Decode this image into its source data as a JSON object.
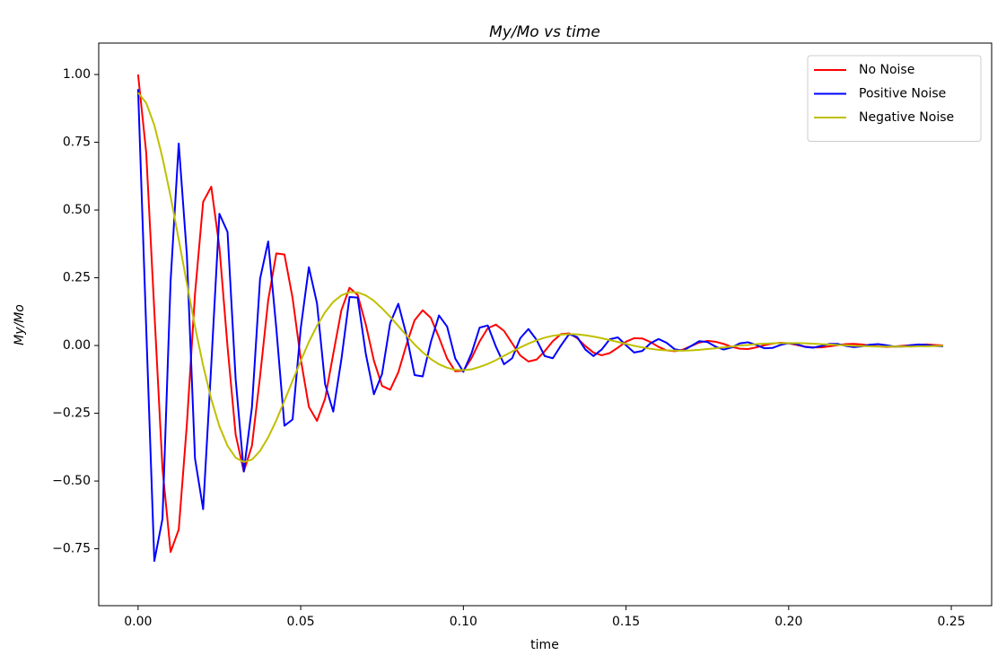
{
  "chart_data": {
    "type": "line",
    "title": "My/Mo vs time",
    "x_label": "time",
    "y_label": "My/Mo",
    "xlim": [
      -0.0121,
      0.2624
    ],
    "ylim": [
      -0.96,
      1.116
    ],
    "xticks": [
      {
        "value": 0,
        "label": "0.00"
      },
      0.05,
      {
        "value": 0.1,
        "label": "0.10"
      },
      0.15,
      {
        "value": 0.2,
        "label": "0.20"
      },
      0.25
    ],
    "yticks": [
      {
        "value": -0.75,
        "label": "−0.75"
      },
      {
        "value": -0.5,
        "label": "−0.50"
      },
      {
        "value": -0.25,
        "label": "−0.25"
      },
      {
        "value": 0,
        "label": "0.00"
      },
      0.25,
      {
        "value": 0.5,
        "label": "0.50"
      },
      0.75,
      {
        "value": 1,
        "label": "1.00"
      }
    ],
    "grid": false,
    "legend": "upper right",
    "x": [
      0,
      0.0025,
      0.005,
      0.0075,
      0.01,
      0.0125,
      0.015,
      0.0175,
      0.02,
      0.0225,
      0.025,
      0.0275,
      0.03,
      0.0325,
      0.035,
      0.0375,
      0.04,
      0.0425,
      0.045,
      0.0475,
      0.05,
      0.0525,
      0.055,
      0.0575,
      0.06,
      0.0625,
      0.065,
      0.0675,
      0.07,
      0.0725,
      0.075,
      0.0775,
      0.08,
      0.0825,
      0.085,
      0.0875,
      0.09,
      0.0925,
      0.095,
      0.0975,
      0.1,
      0.1025,
      0.105,
      0.1075,
      0.11,
      0.1125,
      0.115,
      0.1175,
      0.12,
      0.1225,
      0.125,
      0.1275,
      0.13,
      0.1325,
      0.135,
      0.1375,
      0.14,
      0.1425,
      0.145,
      0.1475,
      0.15,
      0.1525,
      0.155,
      0.1575,
      0.16,
      0.1625,
      0.165,
      0.1675,
      0.17,
      0.1725,
      0.175,
      0.1775,
      0.18,
      0.1825,
      0.185,
      0.1875,
      0.19,
      0.1925,
      0.195,
      0.1975,
      0.2,
      0.2025,
      0.205,
      0.2075,
      0.21,
      0.2125,
      0.215,
      0.2175,
      0.22,
      0.2225,
      0.225,
      0.2275,
      0.23,
      0.2325,
      0.235,
      0.2375,
      0.24,
      0.2425,
      0.245,
      0.2475
    ],
    "series": [
      {
        "name": "No Noise",
        "color": "#ff0000",
        "values": [
          1.0,
          0.712,
          0.126,
          -0.454,
          -0.762,
          -0.679,
          -0.291,
          0.19,
          0.53,
          0.586,
          0.363,
          -0.004,
          -0.329,
          -0.465,
          -0.37,
          -0.114,
          0.167,
          0.34,
          0.336,
          0.175,
          -0.049,
          -0.226,
          -0.278,
          -0.196,
          -0.031,
          0.13,
          0.213,
          0.187,
          0.078,
          -0.056,
          -0.149,
          -0.163,
          -0.099,
          0.003,
          0.093,
          0.13,
          0.102,
          0.03,
          -0.048,
          -0.095,
          -0.093,
          -0.047,
          0.015,
          0.064,
          0.077,
          0.054,
          0.008,
          -0.037,
          -0.059,
          -0.052,
          -0.021,
          0.016,
          0.042,
          0.045,
          0.027,
          -0.002,
          -0.026,
          -0.036,
          -0.028,
          -0.008,
          0.014,
          0.027,
          0.026,
          0.013,
          -0.005,
          -0.018,
          -0.021,
          -0.015,
          -0.002,
          0.011,
          0.017,
          0.014,
          0.006,
          -0.005,
          -0.012,
          -0.013,
          -0.007,
          0.001,
          0.007,
          0.01,
          0.008,
          0.002,
          -0.004,
          -0.007,
          -0.007,
          -0.003,
          0.001,
          0.005,
          0.006,
          0.004,
          0.0,
          -0.003,
          -0.005,
          -0.004,
          -0.001,
          0.001,
          0.003,
          0.004,
          0.002,
          0.0
        ]
      },
      {
        "name": "Positive Noise",
        "color": "#0000ff",
        "values": [
          0.946,
          0.065,
          -0.795,
          -0.64,
          0.238,
          0.745,
          0.334,
          -0.417,
          -0.604,
          -0.071,
          0.486,
          0.419,
          -0.125,
          -0.465,
          -0.228,
          0.246,
          0.384,
          0.063,
          -0.296,
          -0.273,
          0.063,
          0.289,
          0.156,
          -0.143,
          -0.244,
          -0.051,
          0.179,
          0.177,
          -0.03,
          -0.18,
          -0.105,
          0.083,
          0.154,
          0.039,
          -0.109,
          -0.114,
          0.013,
          0.111,
          0.07,
          -0.048,
          -0.097,
          -0.029,
          0.066,
          0.074,
          -0.004,
          -0.069,
          -0.047,
          0.027,
          0.061,
          0.021,
          -0.039,
          -0.047,
          0.0,
          0.042,
          0.031,
          -0.015,
          -0.039,
          -0.015,
          0.023,
          0.03,
          0.001,
          -0.026,
          -0.02,
          0.008,
          0.024,
          0.01,
          -0.014,
          -0.019,
          -0.002,
          0.016,
          0.013,
          -0.004,
          -0.015,
          -0.007,
          0.008,
          0.012,
          0.002,
          -0.01,
          -0.009,
          0.002,
          0.009,
          0.005,
          -0.005,
          -0.008,
          -0.002,
          0.006,
          0.006,
          -0.001,
          -0.006,
          -0.003,
          0.003,
          0.005,
          0.001,
          -0.004,
          -0.004,
          0.001,
          0.004,
          0.002,
          -0.002,
          -0.003
        ]
      },
      {
        "name": "Negative Noise",
        "color": "#bfbf00",
        "values": [
          0.933,
          0.895,
          0.813,
          0.693,
          0.55,
          0.391,
          0.229,
          0.07,
          -0.074,
          -0.198,
          -0.298,
          -0.37,
          -0.414,
          -0.43,
          -0.421,
          -0.389,
          -0.339,
          -0.276,
          -0.204,
          -0.13,
          -0.057,
          0.013,
          0.073,
          0.123,
          0.161,
          0.185,
          0.197,
          0.196,
          0.185,
          0.165,
          0.137,
          0.106,
          0.072,
          0.037,
          0.004,
          -0.025,
          -0.05,
          -0.069,
          -0.082,
          -0.09,
          -0.091,
          -0.088,
          -0.079,
          -0.068,
          -0.054,
          -0.038,
          -0.022,
          -0.007,
          0.007,
          0.019,
          0.029,
          0.036,
          0.04,
          0.042,
          0.041,
          0.038,
          0.033,
          0.027,
          0.02,
          0.013,
          0.006,
          -0.001,
          -0.007,
          -0.012,
          -0.016,
          -0.018,
          -0.019,
          -0.019,
          -0.018,
          -0.016,
          -0.013,
          -0.01,
          -0.007,
          -0.004,
          0.0,
          0.002,
          0.005,
          0.007,
          0.008,
          0.009,
          0.009,
          0.009,
          0.008,
          0.007,
          0.005,
          0.004,
          0.002,
          0.001,
          -0.001,
          -0.002,
          -0.003,
          -0.004,
          -0.004,
          -0.004,
          -0.004,
          -0.004,
          -0.003,
          -0.003,
          -0.002,
          -0.001
        ]
      }
    ]
  }
}
